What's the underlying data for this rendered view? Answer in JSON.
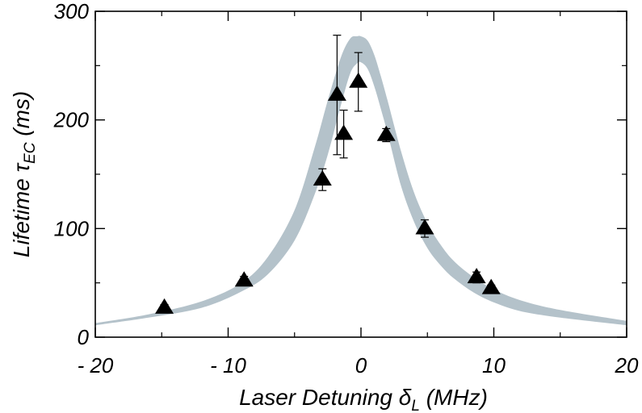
{
  "chart_data": {
    "type": "scatter",
    "title": "",
    "xlabel": "Laser Detuning δL (MHz)",
    "ylabel": "Lifetime τEC (ms)",
    "xlabel_parts": {
      "main": "Laser Detuning δ",
      "sub": "L",
      "tail": " (MHz)"
    },
    "ylabel_parts": {
      "main": "Lifetime τ",
      "sub": "EC",
      "tail": " (ms)"
    },
    "xlim": [
      -20,
      20
    ],
    "ylim": [
      0,
      300
    ],
    "x_ticks": [
      -20,
      -10,
      0,
      10,
      20
    ],
    "x_tick_labels": [
      "- 20",
      "- 10",
      "0",
      "10",
      "20"
    ],
    "y_ticks": [
      0,
      100,
      200,
      300
    ],
    "y_tick_labels": [
      "0",
      "100",
      "200",
      "300"
    ],
    "grid": false,
    "series": [
      {
        "marker": "triangle",
        "color": "#000000",
        "points": [
          {
            "x": -14.8,
            "y": 27,
            "err": 3
          },
          {
            "x": -8.8,
            "y": 52,
            "err": 4
          },
          {
            "x": -2.9,
            "y": 145,
            "err": 10
          },
          {
            "x": -1.8,
            "y": 223,
            "err": 55
          },
          {
            "x": -1.3,
            "y": 187,
            "err": 22
          },
          {
            "x": -0.2,
            "y": 235,
            "err": 27
          },
          {
            "x": 1.9,
            "y": 186,
            "err": 6
          },
          {
            "x": 4.8,
            "y": 100,
            "err": 8
          },
          {
            "x": 8.7,
            "y": 55,
            "err": 5
          },
          {
            "x": 9.8,
            "y": 45,
            "err": 3
          }
        ]
      }
    ],
    "band": {
      "type": "area",
      "color": "#b4c2ca",
      "x": [
        -20,
        -16,
        -12,
        -9,
        -7,
        -5,
        -3.5,
        -2.5,
        -1.5,
        -0.8,
        -0.3,
        0,
        0.5,
        1,
        1.5,
        2,
        3,
        4,
        5,
        6,
        7,
        8.5,
        10,
        12,
        15,
        20
      ],
      "upper": [
        13,
        21,
        33,
        50,
        74,
        117,
        174,
        218,
        258,
        275,
        277,
        277,
        273,
        260,
        240,
        218,
        172,
        133,
        105,
        85,
        70,
        55,
        44,
        34,
        25,
        15
      ],
      "lower": [
        11,
        18,
        27,
        42,
        58,
        89,
        131,
        168,
        214,
        243,
        252,
        253,
        247,
        231,
        210,
        188,
        140,
        106,
        82,
        66,
        54,
        41,
        32,
        24,
        18,
        11
      ]
    }
  }
}
